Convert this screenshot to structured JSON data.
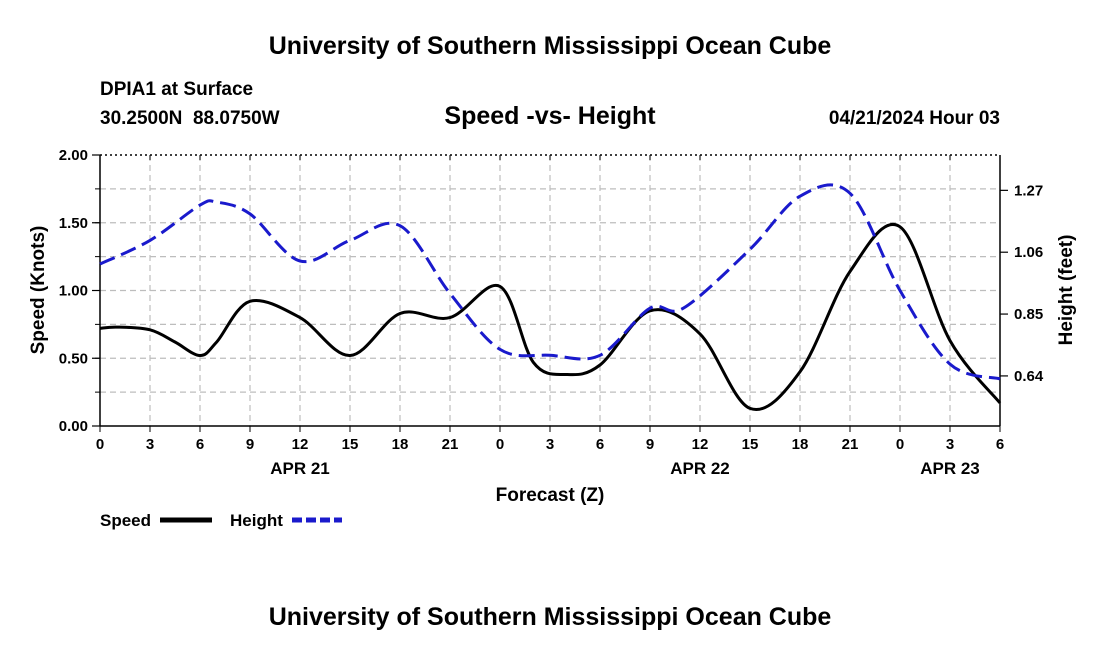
{
  "header": {
    "title": "University of Southern Mississippi Ocean Cube",
    "station": "DPIA1 at Surface",
    "coords": "30.2500N  88.0750W",
    "subtitle": "Speed -vs- Height",
    "date": "04/21/2024 Hour 03"
  },
  "footer": {
    "title": "University of Southern Mississippi Ocean Cube"
  },
  "colors": {
    "speed": "#000000",
    "height": "#1a1acc",
    "grid": "#bdbdbd"
  },
  "chart_data": {
    "type": "line",
    "xlabel": "Forecast (Z)",
    "ylabel": "Speed (Knots)",
    "y2label": "Height (feet)",
    "x_hours_range": [
      0,
      54
    ],
    "x_tick_labels": [
      "0",
      "3",
      "6",
      "9",
      "12",
      "15",
      "18",
      "21",
      "0",
      "3",
      "6",
      "9",
      "12",
      "15",
      "18",
      "21",
      "0",
      "3",
      "6"
    ],
    "day_labels": [
      {
        "text": "APR 21",
        "hour": 12
      },
      {
        "text": "APR 22",
        "hour": 36
      },
      {
        "text": "APR 23",
        "hour": 51
      }
    ],
    "ylim": [
      0,
      2.0
    ],
    "y_ticks": [
      0,
      0.5,
      1.0,
      1.5,
      2.0
    ],
    "y_tick_labels": [
      "0.00",
      "0.50",
      "1.00",
      "1.50",
      "2.00"
    ],
    "y2lim": [
      0.47,
      1.39
    ],
    "y2_ticks": [
      0.64,
      0.85,
      1.06,
      1.27
    ],
    "y2_tick_labels": [
      "0.64",
      "0.85",
      "1.06",
      "1.27"
    ],
    "series": [
      {
        "name": "Speed",
        "axis": "left",
        "x": [
          0,
          1,
          3,
          4.5,
          6,
          7,
          9,
          12,
          15,
          18,
          21,
          24,
          26,
          28,
          30,
          33,
          36,
          39,
          42,
          45,
          48,
          51,
          54
        ],
        "values": [
          0.72,
          0.73,
          0.71,
          0.62,
          0.52,
          0.62,
          0.92,
          0.8,
          0.52,
          0.83,
          0.8,
          1.03,
          0.47,
          0.38,
          0.45,
          0.85,
          0.68,
          0.13,
          0.4,
          1.14,
          1.47,
          0.63,
          0.17
        ]
      },
      {
        "name": "Height",
        "axis": "right",
        "x": [
          0,
          3,
          6,
          7,
          9,
          12,
          15,
          18,
          21,
          24,
          27,
          30,
          33,
          35,
          39,
          42,
          45,
          48,
          51,
          54
        ],
        "values": [
          1.02,
          1.1,
          1.22,
          1.23,
          1.19,
          1.03,
          1.1,
          1.15,
          0.92,
          0.73,
          0.71,
          0.71,
          0.87,
          0.87,
          1.07,
          1.25,
          1.26,
          0.93,
          0.68,
          0.63
        ]
      }
    ],
    "legend": [
      {
        "label": "Speed",
        "series": "Speed"
      },
      {
        "label": "Height",
        "series": "Height"
      }
    ],
    "legend_position": "bottom-left"
  }
}
